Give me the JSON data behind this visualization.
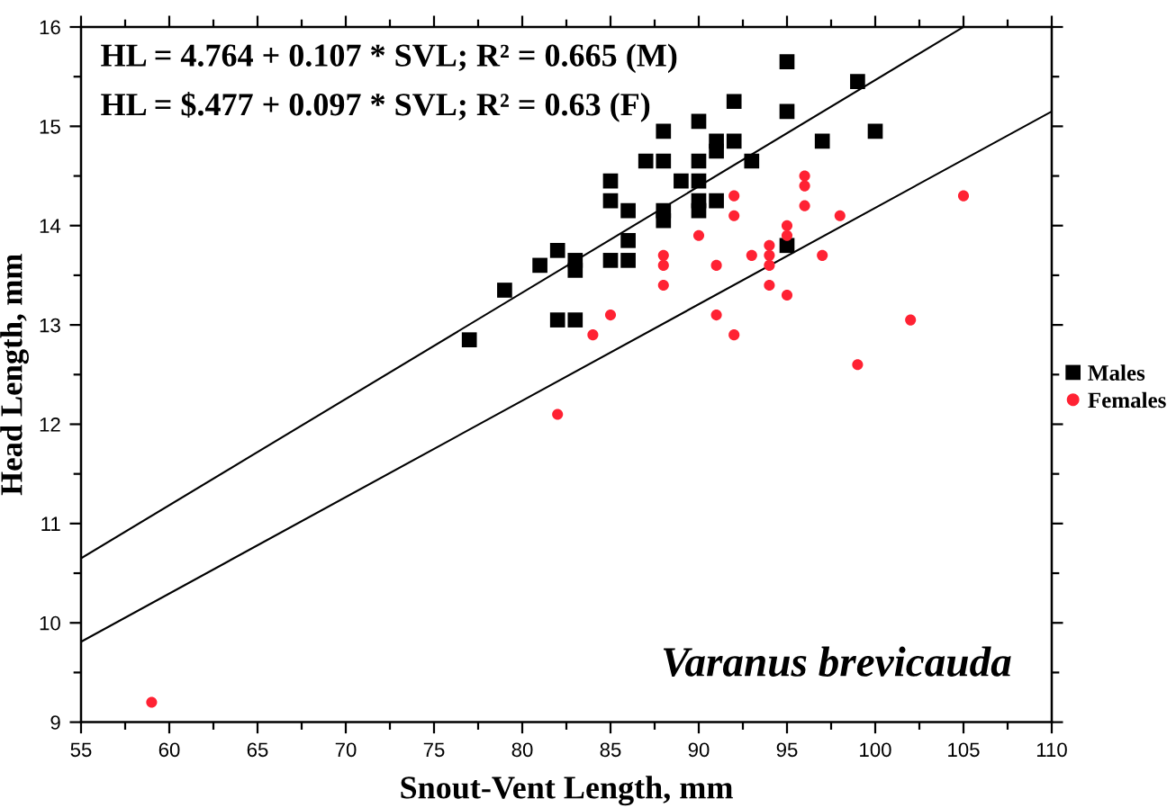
{
  "chart_data": {
    "type": "scatter",
    "xlabel": "Snout-Vent Length, mm",
    "ylabel": "Head Length, mm",
    "annotations": [
      "HL = 4.764 + 0.107 * SVL; R² = 0.665 (M)",
      "HL = $.477 + 0.097 * SVL; R² = 0.63 (F)",
      "Varanus brevicauda"
    ],
    "xlim": [
      55,
      110
    ],
    "ylim": [
      9,
      16
    ],
    "xticks": [
      55,
      {
        "value": 57.5,
        "label": null
      },
      60,
      {
        "value": 62.5,
        "label": null
      },
      65,
      {
        "value": 67.5,
        "label": null
      },
      70,
      {
        "value": 72.5,
        "label": null
      },
      75,
      {
        "value": 77.5,
        "label": null
      },
      80,
      {
        "value": 82.5,
        "label": null
      },
      85,
      {
        "value": 87.5,
        "label": null
      },
      90,
      {
        "value": 92.5,
        "label": null
      },
      95,
      {
        "value": 97.5,
        "label": null
      },
      100,
      {
        "value": 102.5,
        "label": null
      },
      105,
      {
        "value": 107.5,
        "label": null
      },
      110
    ],
    "yticks": [
      9,
      {
        "value": 9.5,
        "label": null
      },
      10,
      {
        "value": 10.5,
        "label": null
      },
      11,
      {
        "value": 11.5,
        "label": null
      },
      12,
      {
        "value": 12.5,
        "label": null
      },
      13,
      {
        "value": 13.5,
        "label": null
      },
      14,
      {
        "value": 14.5,
        "label": null
      },
      15,
      {
        "value": 15.5,
        "label": null
      },
      16
    ],
    "grid": false,
    "legend": "right",
    "series": [
      {
        "name": "Males",
        "color": "#000000",
        "marker": "square",
        "x": [
          77,
          79,
          81,
          82,
          82,
          83,
          83,
          83,
          85,
          85,
          85,
          86,
          86,
          86,
          87,
          88,
          88,
          88,
          88,
          89,
          90,
          90,
          90,
          90,
          90,
          91,
          91,
          91,
          92,
          92,
          93,
          95,
          95,
          95,
          97,
          99,
          100
        ],
        "values": [
          12.85,
          13.35,
          13.6,
          13.75,
          13.05,
          13.05,
          13.65,
          13.55,
          14.45,
          14.25,
          13.65,
          14.15,
          13.65,
          13.85,
          14.65,
          14.95,
          14.65,
          14.15,
          14.05,
          14.45,
          15.05,
          14.65,
          14.45,
          14.25,
          14.15,
          14.85,
          14.75,
          14.25,
          15.25,
          14.85,
          14.65,
          15.65,
          15.15,
          13.8,
          14.85,
          15.45,
          14.95
        ]
      },
      {
        "name": "Females",
        "color": "#ff2233",
        "marker": "circle",
        "x": [
          59,
          82,
          84,
          85,
          88,
          88,
          88,
          90,
          91,
          91,
          92,
          92,
          92,
          93,
          94,
          94,
          94,
          94,
          95,
          95,
          95,
          96,
          96,
          96,
          97,
          98,
          99,
          102,
          105
        ],
        "values": [
          9.2,
          12.1,
          12.9,
          13.1,
          13.4,
          13.7,
          13.6,
          13.9,
          13.1,
          13.6,
          12.9,
          14.3,
          14.1,
          13.7,
          13.8,
          13.7,
          13.6,
          13.4,
          14.0,
          13.9,
          13.3,
          14.5,
          14.4,
          14.2,
          13.7,
          14.1,
          12.6,
          13.05,
          14.3
        ]
      },
      {
        "type": "line",
        "color": "#000000",
        "line_style": "solid",
        "x": [
          55,
          105
        ],
        "values": [
          10.65,
          16.0
        ]
      },
      {
        "type": "line",
        "color": "#000000",
        "line_style": "solid",
        "x": [
          55,
          110
        ],
        "values": [
          9.81,
          15.15
        ]
      }
    ]
  }
}
